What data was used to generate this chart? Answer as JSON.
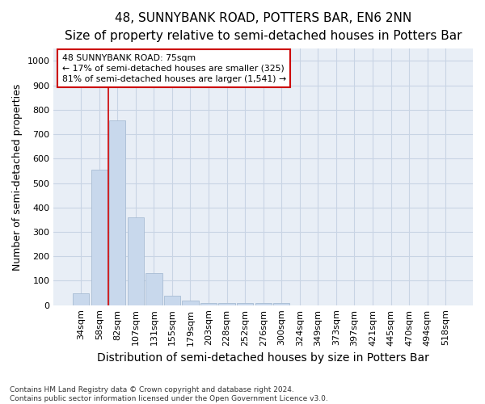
{
  "title_line1": "48, SUNNYBANK ROAD, POTTERS BAR, EN6 2NN",
  "title_line2": "Size of property relative to semi-detached houses in Potters Bar",
  "xlabel": "Distribution of semi-detached houses by size in Potters Bar",
  "ylabel": "Number of semi-detached properties",
  "footnote": "Contains HM Land Registry data © Crown copyright and database right 2024.\nContains public sector information licensed under the Open Government Licence v3.0.",
  "bar_labels": [
    "34sqm",
    "58sqm",
    "82sqm",
    "107sqm",
    "131sqm",
    "155sqm",
    "179sqm",
    "203sqm",
    "228sqm",
    "252sqm",
    "276sqm",
    "300sqm",
    "324sqm",
    "349sqm",
    "373sqm",
    "397sqm",
    "421sqm",
    "445sqm",
    "470sqm",
    "494sqm",
    "518sqm"
  ],
  "bar_values": [
    50,
    555,
    755,
    360,
    130,
    40,
    18,
    10,
    8,
    8,
    8,
    10,
    0,
    0,
    0,
    0,
    0,
    0,
    0,
    0,
    0
  ],
  "bar_color": "#c8d8ec",
  "bar_edge_color": "#a8bcd4",
  "vline_x": 1.5,
  "vline_color": "#cc0000",
  "annotation_text": "48 SUNNYBANK ROAD: 75sqm\n← 17% of semi-detached houses are smaller (325)\n81% of semi-detached houses are larger (1,541) →",
  "annotation_box_color": "#cc0000",
  "annotation_bg": "#ffffff",
  "ylim": [
    0,
    1050
  ],
  "yticks": [
    0,
    100,
    200,
    300,
    400,
    500,
    600,
    700,
    800,
    900,
    1000
  ],
  "grid_color": "#c8d4e4",
  "bg_color": "#e8eef6",
  "plot_bg": "#e8eef6",
  "title_fontsize": 11,
  "subtitle_fontsize": 9,
  "axis_label_fontsize": 9,
  "tick_fontsize": 8,
  "footnote_fontsize": 6.5
}
